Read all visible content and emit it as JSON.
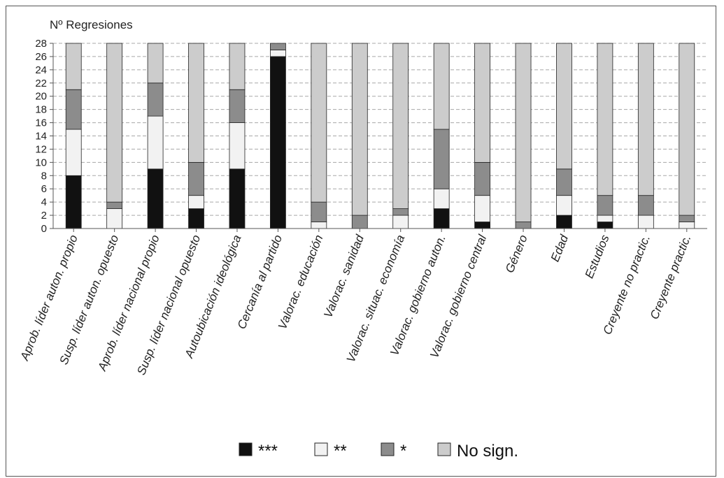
{
  "chart_data": {
    "type": "bar",
    "stacked": true,
    "ylabel": "Nº Regresiones",
    "ylim": [
      0,
      28
    ],
    "yticks": [
      0,
      2,
      4,
      6,
      8,
      10,
      12,
      14,
      16,
      18,
      20,
      22,
      24,
      26,
      28
    ],
    "grid": true,
    "legend_position": "bottom",
    "categories": [
      "Aprob. líder auton. propio",
      "Susp. líder auton. opuesto",
      "Aprob. líder nacional propio",
      "Susp. líder nacional opuesto",
      "Autoubicación ideológica",
      "Cercanía al partido",
      "Valorac. educación",
      "Valorac. sanidad",
      "Valorac. situac. economía",
      "Valorac. gobierno auton.",
      "Valorac. gobierno central",
      "Género",
      "Edad",
      "Estudios",
      "Creyente no practic.",
      "Creyente practic."
    ],
    "series": [
      {
        "name": "***",
        "color": "#111111",
        "values": [
          8,
          0,
          9,
          3,
          9,
          26,
          0,
          0,
          0,
          3,
          1,
          0,
          2,
          1,
          0,
          0
        ]
      },
      {
        "name": "**",
        "color": "#f2f2f2",
        "values": [
          7,
          3,
          8,
          2,
          7,
          1,
          1,
          0,
          2,
          3,
          4,
          0,
          3,
          1,
          2,
          1
        ]
      },
      {
        "name": "*",
        "color": "#8c8c8c",
        "values": [
          6,
          1,
          5,
          5,
          5,
          1,
          3,
          2,
          1,
          9,
          5,
          1,
          4,
          3,
          3,
          1
        ]
      },
      {
        "name": "No sign.",
        "color": "#cccccc",
        "values": [
          7,
          24,
          6,
          18,
          7,
          0,
          24,
          26,
          25,
          13,
          18,
          27,
          19,
          23,
          23,
          26
        ]
      }
    ]
  }
}
